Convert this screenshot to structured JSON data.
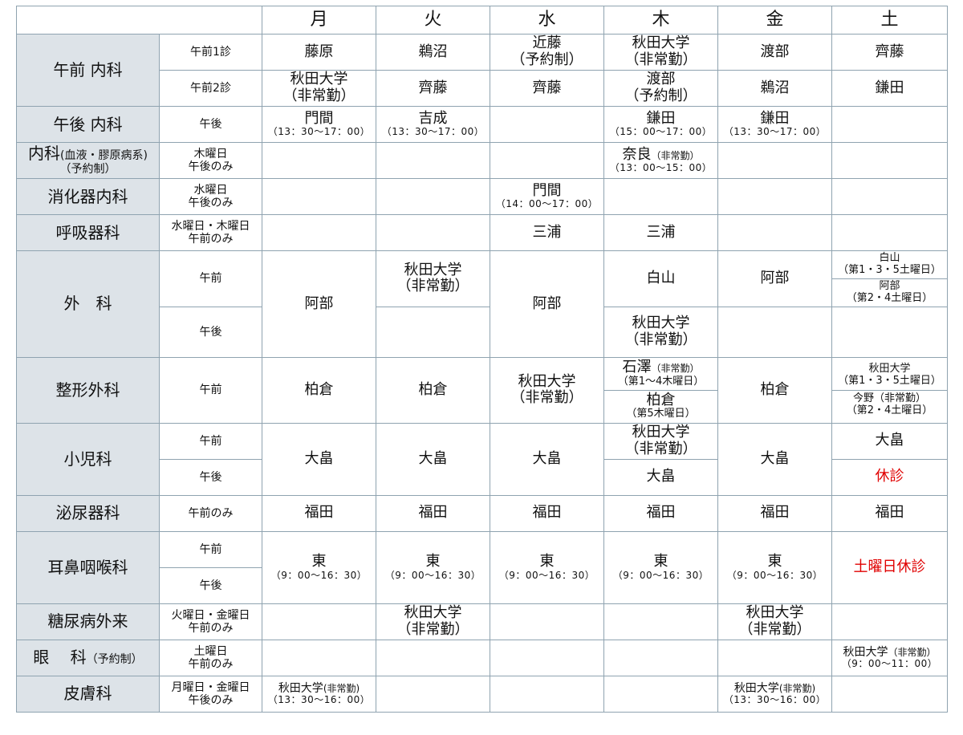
{
  "days": [
    "月",
    "火",
    "水",
    "木",
    "金",
    "土"
  ],
  "rows": {
    "gozen_naika": {
      "dept": "午前 内科",
      "sub1": "午前1診",
      "sub2": "午前2診",
      "r1": [
        "藤原",
        "鵜沼",
        "近藤",
        "（予約制）",
        "秋田大学",
        "（非常勤）",
        "渡部",
        "齊藤"
      ],
      "r2": [
        "秋田大学",
        "（非常勤）",
        "齊藤",
        "齊藤",
        "渡部",
        "（予約制）",
        "鵜沼",
        "鎌田"
      ]
    },
    "gogo_naika": {
      "dept": "午後 内科",
      "sub": "午後",
      "mon": "門間",
      "mon_t": "（13：30〜17：00）",
      "tue": "吉成",
      "tue_t": "（13：30〜17：00）",
      "thu": "鎌田",
      "thu_t": "（15：00〜17：00）",
      "fri": "鎌田",
      "fri_t": "（13：30〜17：00）"
    },
    "ketsueki": {
      "dept_a": "内科",
      "dept_b": "(血液・膠原病系)",
      "dept_c": "（予約制）",
      "sub_a": "木曜日",
      "sub_b": "午後のみ",
      "thu": "奈良",
      "thu_note": "（非常勤）",
      "thu_t": "（13：00〜15：00）"
    },
    "shokaki": {
      "dept": "消化器内科",
      "sub_a": "水曜日",
      "sub_b": "午後のみ",
      "wed": "門間",
      "wed_t": "（14：00〜17：00）"
    },
    "kokyuki": {
      "dept": "呼吸器科",
      "sub_a": "水曜日・木曜日",
      "sub_b": "午前のみ",
      "wed": "三浦",
      "thu": "三浦"
    },
    "geka": {
      "dept": "外　科",
      "sub1": "午前",
      "sub2": "午後",
      "mon": "阿部",
      "tue_a": "秋田大学",
      "tue_b": "（非常勤）",
      "wed": "阿部",
      "thu_am": "白山",
      "thu_pm_a": "秋田大学",
      "thu_pm_b": "（非常勤）",
      "fri_am": "阿部",
      "sat_1": "白山",
      "sat_1n": "（第1・3・5土曜日）",
      "sat_2": "阿部",
      "sat_2n": "（第2・4土曜日）"
    },
    "seikei": {
      "dept": "整形外科",
      "sub": "午前",
      "mon": "柏倉",
      "tue": "柏倉",
      "wed_a": "秋田大学",
      "wed_b": "（非常勤）",
      "thu_1": "石澤",
      "thu_1n": "（非常勤）",
      "thu_1w": "（第1〜4木曜日）",
      "thu_2": "柏倉",
      "thu_2n": "（第5木曜日）",
      "fri": "柏倉",
      "sat_1": "秋田大学",
      "sat_1n": "（第1・3・5土曜日）",
      "sat_2": "今野",
      "sat_2a": "（非常勤）",
      "sat_2n": "（第2・4土曜日）"
    },
    "shonika": {
      "dept": "小児科",
      "sub1": "午前",
      "sub2": "午後",
      "mon": "大畠",
      "tue": "大畠",
      "wed": "大畠",
      "thu_am_a": "秋田大学",
      "thu_am_b": "（非常勤）",
      "thu_pm": "大畠",
      "fri": "大畠",
      "sat_am": "大畠",
      "sat_pm": "休診"
    },
    "hinyoki": {
      "dept": "泌尿器科",
      "sub": "午前のみ",
      "doctors": [
        "福田",
        "福田",
        "福田",
        "福田",
        "福田",
        "福田"
      ]
    },
    "jibi": {
      "dept": "耳鼻咽喉科",
      "sub1": "午前",
      "sub2": "午後",
      "doc": "東",
      "time": "（9：00〜16：30）",
      "sat": "土曜日休診"
    },
    "tonyo": {
      "dept": "糖尿病外来",
      "sub_a": "火曜日・金曜日",
      "sub_b": "午前のみ",
      "tue_a": "秋田大学",
      "tue_b": "（非常勤）",
      "fri_a": "秋田大学",
      "fri_b": "（非常勤）"
    },
    "ganka": {
      "dept_a": "眼　 科",
      "dept_b": "（予約制）",
      "sub_a": "土曜日",
      "sub_b": "午前のみ",
      "sat": "秋田大学",
      "sat_n": "（非常勤）",
      "sat_t": "（9：00〜11：00）"
    },
    "hifu": {
      "dept": "皮膚科",
      "sub_a": "月曜日・金曜日",
      "sub_b": "午後のみ",
      "mon": "秋田大学",
      "mon_n": "(非常勤)",
      "mon_t": "（13：30〜16：00）",
      "fri": "秋田大学",
      "fri_n": "(非常勤)",
      "fri_t": "（13：30〜16：00）"
    }
  },
  "colors": {
    "header_bg": "#dde3e8",
    "border": "#8fa3b0",
    "closed": "#e00000"
  }
}
